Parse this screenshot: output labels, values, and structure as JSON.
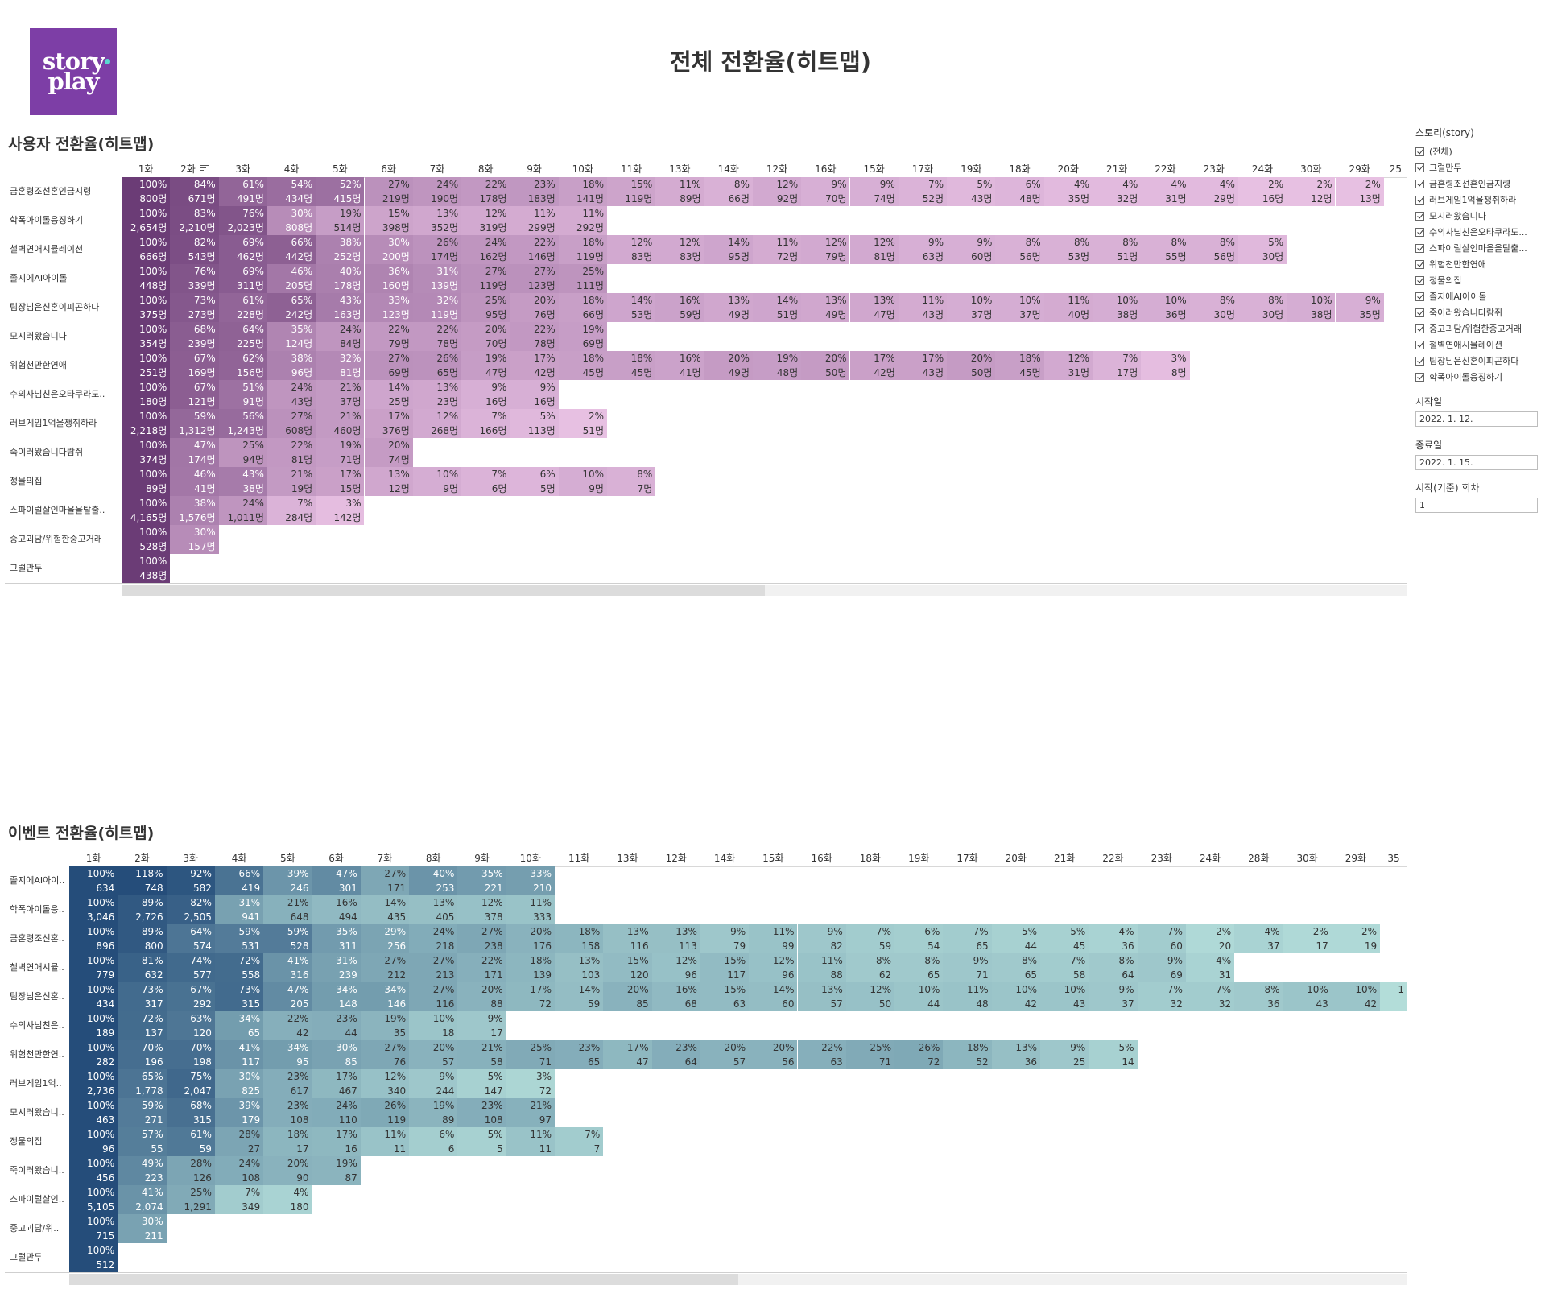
{
  "logo": {
    "line1": "story",
    "line2": "play"
  },
  "page_title": "전체 전환율(히트맵)",
  "filters": {
    "story_title": "스토리(story)",
    "options": [
      "(전체)",
      "그럴만두",
      "금혼령조선혼인금지령",
      "러브게임1억을쟁취하라",
      "모시러왔습니다",
      "수의사님친은오타쿠라도...",
      "스파이럴살인마을을탈출...",
      "위험천만한연애",
      "정물의집",
      "졸지에AI아이돌",
      "죽이러왔습니다람쥐",
      "중고괴담/위험한중고거래",
      "철벽연애시뮬레이션",
      "팀장님은신혼이피곤하다",
      "학폭아이돌응징하기"
    ],
    "start_date_label": "시작일",
    "start_date": "2022. 1. 12.",
    "end_date_label": "종료일",
    "end_date": "2022. 1. 15.",
    "episode_label": "시작(기준) 회차",
    "episode": "1"
  },
  "user_heatmap": {
    "title": "사용자 전환율(히트맵)",
    "columns": [
      "1화",
      "2화",
      "3화",
      "4화",
      "5화",
      "6화",
      "7화",
      "8화",
      "9화",
      "10화",
      "11화",
      "13화",
      "14화",
      "12화",
      "16화",
      "15화",
      "17화",
      "19화",
      "18화",
      "20화",
      "21화",
      "22화",
      "23화",
      "24화",
      "30화",
      "29화",
      "25"
    ],
    "rows": [
      {
        "label": "금혼령조선혼인금지령",
        "pct": [
          "100%",
          "84%",
          "61%",
          "54%",
          "52%",
          "27%",
          "24%",
          "22%",
          "23%",
          "18%",
          "15%",
          "11%",
          "8%",
          "12%",
          "9%",
          "9%",
          "7%",
          "5%",
          "6%",
          "4%",
          "4%",
          "4%",
          "4%",
          "2%",
          "2%",
          "2%"
        ],
        "cnt": [
          "800명",
          "671명",
          "491명",
          "434명",
          "415명",
          "219명",
          "190명",
          "178명",
          "183명",
          "141명",
          "119명",
          "89명",
          "66명",
          "92명",
          "70명",
          "74명",
          "52명",
          "43명",
          "48명",
          "35명",
          "32명",
          "31명",
          "29명",
          "16명",
          "12명",
          "13명"
        ]
      },
      {
        "label": "학폭아이돌응징하기",
        "pct": [
          "100%",
          "83%",
          "76%",
          "30%",
          "19%",
          "15%",
          "13%",
          "12%",
          "11%",
          "11%"
        ],
        "cnt": [
          "2,654명",
          "2,210명",
          "2,023명",
          "808명",
          "514명",
          "398명",
          "352명",
          "319명",
          "299명",
          "292명"
        ]
      },
      {
        "label": "철벽연애시뮬레이션",
        "pct": [
          "100%",
          "82%",
          "69%",
          "66%",
          "38%",
          "30%",
          "26%",
          "24%",
          "22%",
          "18%",
          "12%",
          "12%",
          "14%",
          "11%",
          "12%",
          "12%",
          "9%",
          "9%",
          "8%",
          "8%",
          "8%",
          "8%",
          "8%",
          "5%"
        ],
        "cnt": [
          "666명",
          "543명",
          "462명",
          "442명",
          "252명",
          "200명",
          "174명",
          "162명",
          "146명",
          "119명",
          "83명",
          "83명",
          "95명",
          "72명",
          "79명",
          "81명",
          "63명",
          "60명",
          "56명",
          "53명",
          "51명",
          "55명",
          "56명",
          "30명"
        ]
      },
      {
        "label": "졸지에AI아이돌",
        "pct": [
          "100%",
          "76%",
          "69%",
          "46%",
          "40%",
          "36%",
          "31%",
          "27%",
          "27%",
          "25%"
        ],
        "cnt": [
          "448명",
          "339명",
          "311명",
          "205명",
          "178명",
          "160명",
          "139명",
          "119명",
          "123명",
          "111명"
        ]
      },
      {
        "label": "팀장님은신혼이피곤하다",
        "pct": [
          "100%",
          "73%",
          "61%",
          "65%",
          "43%",
          "33%",
          "32%",
          "25%",
          "20%",
          "18%",
          "14%",
          "16%",
          "13%",
          "14%",
          "13%",
          "13%",
          "11%",
          "10%",
          "10%",
          "11%",
          "10%",
          "10%",
          "8%",
          "8%",
          "10%",
          "9%"
        ],
        "cnt": [
          "375명",
          "273명",
          "228명",
          "242명",
          "163명",
          "123명",
          "119명",
          "95명",
          "76명",
          "66명",
          "53명",
          "59명",
          "49명",
          "51명",
          "49명",
          "47명",
          "43명",
          "37명",
          "37명",
          "40명",
          "38명",
          "36명",
          "30명",
          "30명",
          "38명",
          "35명"
        ]
      },
      {
        "label": "모시러왔습니다",
        "pct": [
          "100%",
          "68%",
          "64%",
          "35%",
          "24%",
          "22%",
          "22%",
          "20%",
          "22%",
          "19%"
        ],
        "cnt": [
          "354명",
          "239명",
          "225명",
          "124명",
          "84명",
          "79명",
          "78명",
          "70명",
          "78명",
          "69명"
        ]
      },
      {
        "label": "위험천만한연애",
        "pct": [
          "100%",
          "67%",
          "62%",
          "38%",
          "32%",
          "27%",
          "26%",
          "19%",
          "17%",
          "18%",
          "18%",
          "16%",
          "20%",
          "19%",
          "20%",
          "17%",
          "17%",
          "20%",
          "18%",
          "12%",
          "7%",
          "3%"
        ],
        "cnt": [
          "251명",
          "169명",
          "156명",
          "96명",
          "81명",
          "69명",
          "65명",
          "47명",
          "42명",
          "45명",
          "45명",
          "41명",
          "49명",
          "48명",
          "50명",
          "42명",
          "43명",
          "50명",
          "45명",
          "31명",
          "17명",
          "8명"
        ]
      },
      {
        "label": "수의사님친은오타쿠라도..",
        "pct": [
          "100%",
          "67%",
          "51%",
          "24%",
          "21%",
          "14%",
          "13%",
          "9%",
          "9%"
        ],
        "cnt": [
          "180명",
          "121명",
          "91명",
          "43명",
          "37명",
          "25명",
          "23명",
          "16명",
          "16명"
        ]
      },
      {
        "label": "러브게임1억을쟁취하라",
        "pct": [
          "100%",
          "59%",
          "56%",
          "27%",
          "21%",
          "17%",
          "12%",
          "7%",
          "5%",
          "2%"
        ],
        "cnt": [
          "2,218명",
          "1,312명",
          "1,243명",
          "608명",
          "460명",
          "376명",
          "268명",
          "166명",
          "113명",
          "51명"
        ]
      },
      {
        "label": "죽이러왔습니다람쥐",
        "pct": [
          "100%",
          "47%",
          "25%",
          "22%",
          "19%",
          "20%"
        ],
        "cnt": [
          "374명",
          "174명",
          "94명",
          "81명",
          "71명",
          "74명"
        ]
      },
      {
        "label": "정물의집",
        "pct": [
          "100%",
          "46%",
          "43%",
          "21%",
          "17%",
          "13%",
          "10%",
          "7%",
          "6%",
          "10%",
          "8%"
        ],
        "cnt": [
          "89명",
          "41명",
          "38명",
          "19명",
          "15명",
          "12명",
          "9명",
          "6명",
          "5명",
          "9명",
          "7명"
        ]
      },
      {
        "label": "스파이럴살인마을을탈출..",
        "pct": [
          "100%",
          "38%",
          "24%",
          "7%",
          "3%"
        ],
        "cnt": [
          "4,165명",
          "1,576명",
          "1,011명",
          "284명",
          "142명"
        ]
      },
      {
        "label": "중고괴담/위험한중고거래",
        "pct": [
          "100%",
          "30%"
        ],
        "cnt": [
          "528명",
          "157명"
        ]
      },
      {
        "label": "그럴만두",
        "pct": [
          "100%"
        ],
        "cnt": [
          "438명"
        ]
      }
    ]
  },
  "event_heatmap": {
    "title": "이벤트 전환율(히트맵)",
    "columns": [
      "1화",
      "2화",
      "3화",
      "4화",
      "5화",
      "6화",
      "7화",
      "8화",
      "9화",
      "10화",
      "11화",
      "13화",
      "12화",
      "14화",
      "15화",
      "16화",
      "18화",
      "19화",
      "17화",
      "20화",
      "21화",
      "22화",
      "23화",
      "24화",
      "28화",
      "30화",
      "29화",
      "35"
    ],
    "rows": [
      {
        "label": "졸지에AI아이..",
        "pct": [
          "100%",
          "118%",
          "92%",
          "66%",
          "39%",
          "47%",
          "27%",
          "40%",
          "35%",
          "33%"
        ],
        "cnt": [
          "634",
          "748",
          "582",
          "419",
          "246",
          "301",
          "171",
          "253",
          "221",
          "210"
        ]
      },
      {
        "label": "학폭아이돌응..",
        "pct": [
          "100%",
          "89%",
          "82%",
          "31%",
          "21%",
          "16%",
          "14%",
          "13%",
          "12%",
          "11%"
        ],
        "cnt": [
          "3,046",
          "2,726",
          "2,505",
          "941",
          "648",
          "494",
          "435",
          "405",
          "378",
          "333"
        ]
      },
      {
        "label": "금혼령조선혼..",
        "pct": [
          "100%",
          "89%",
          "64%",
          "59%",
          "59%",
          "35%",
          "29%",
          "24%",
          "27%",
          "20%",
          "18%",
          "13%",
          "13%",
          "9%",
          "11%",
          "9%",
          "7%",
          "6%",
          "7%",
          "5%",
          "5%",
          "4%",
          "7%",
          "2%",
          "4%",
          "2%",
          "2%"
        ],
        "cnt": [
          "896",
          "800",
          "574",
          "531",
          "528",
          "311",
          "256",
          "218",
          "238",
          "176",
          "158",
          "116",
          "113",
          "79",
          "99",
          "82",
          "59",
          "54",
          "65",
          "44",
          "45",
          "36",
          "60",
          "20",
          "37",
          "17",
          "19"
        ]
      },
      {
        "label": "철벽연애시뮬..",
        "pct": [
          "100%",
          "81%",
          "74%",
          "72%",
          "41%",
          "31%",
          "27%",
          "27%",
          "22%",
          "18%",
          "13%",
          "15%",
          "12%",
          "15%",
          "12%",
          "11%",
          "8%",
          "8%",
          "9%",
          "8%",
          "7%",
          "8%",
          "9%",
          "4%"
        ],
        "cnt": [
          "779",
          "632",
          "577",
          "558",
          "316",
          "239",
          "212",
          "213",
          "171",
          "139",
          "103",
          "120",
          "96",
          "117",
          "96",
          "88",
          "62",
          "65",
          "71",
          "65",
          "58",
          "64",
          "69",
          "31"
        ]
      },
      {
        "label": "팀장님은신혼..",
        "pct": [
          "100%",
          "73%",
          "67%",
          "73%",
          "47%",
          "34%",
          "34%",
          "27%",
          "20%",
          "17%",
          "14%",
          "20%",
          "16%",
          "15%",
          "14%",
          "13%",
          "12%",
          "10%",
          "11%",
          "10%",
          "10%",
          "9%",
          "7%",
          "7%",
          "8%",
          "10%",
          "10%",
          "1"
        ],
        "cnt": [
          "434",
          "317",
          "292",
          "315",
          "205",
          "148",
          "146",
          "116",
          "88",
          "72",
          "59",
          "85",
          "68",
          "63",
          "60",
          "57",
          "50",
          "44",
          "48",
          "42",
          "43",
          "37",
          "32",
          "32",
          "36",
          "43",
          "42",
          ""
        ]
      },
      {
        "label": "수의사님친은..",
        "pct": [
          "100%",
          "72%",
          "63%",
          "34%",
          "22%",
          "23%",
          "19%",
          "10%",
          "9%"
        ],
        "cnt": [
          "189",
          "137",
          "120",
          "65",
          "42",
          "44",
          "35",
          "18",
          "17"
        ]
      },
      {
        "label": "위험천만한연..",
        "pct": [
          "100%",
          "70%",
          "70%",
          "41%",
          "34%",
          "30%",
          "27%",
          "20%",
          "21%",
          "25%",
          "23%",
          "17%",
          "23%",
          "20%",
          "20%",
          "22%",
          "25%",
          "26%",
          "18%",
          "13%",
          "9%",
          "5%"
        ],
        "cnt": [
          "282",
          "196",
          "198",
          "117",
          "95",
          "85",
          "76",
          "57",
          "58",
          "71",
          "65",
          "47",
          "64",
          "57",
          "56",
          "63",
          "71",
          "72",
          "52",
          "36",
          "25",
          "14"
        ]
      },
      {
        "label": "러브게임1억..",
        "pct": [
          "100%",
          "65%",
          "75%",
          "30%",
          "23%",
          "17%",
          "12%",
          "9%",
          "5%",
          "3%"
        ],
        "cnt": [
          "2,736",
          "1,778",
          "2,047",
          "825",
          "617",
          "467",
          "340",
          "244",
          "147",
          "72"
        ]
      },
      {
        "label": "모시러왔습니..",
        "pct": [
          "100%",
          "59%",
          "68%",
          "39%",
          "23%",
          "24%",
          "26%",
          "19%",
          "23%",
          "21%"
        ],
        "cnt": [
          "463",
          "271",
          "315",
          "179",
          "108",
          "110",
          "119",
          "89",
          "108",
          "97"
        ]
      },
      {
        "label": "정물의집",
        "pct": [
          "100%",
          "57%",
          "61%",
          "28%",
          "18%",
          "17%",
          "11%",
          "6%",
          "5%",
          "11%",
          "7%"
        ],
        "cnt": [
          "96",
          "55",
          "59",
          "27",
          "17",
          "16",
          "11",
          "6",
          "5",
          "11",
          "7"
        ]
      },
      {
        "label": "죽이러왔습니..",
        "pct": [
          "100%",
          "49%",
          "28%",
          "24%",
          "20%",
          "19%"
        ],
        "cnt": [
          "456",
          "223",
          "126",
          "108",
          "90",
          "87"
        ]
      },
      {
        "label": "스파이럴살인..",
        "pct": [
          "100%",
          "41%",
          "25%",
          "7%",
          "4%"
        ],
        "cnt": [
          "5,105",
          "2,074",
          "1,291",
          "349",
          "180"
        ]
      },
      {
        "label": "중고괴담/위..",
        "pct": [
          "100%",
          "30%"
        ],
        "cnt": [
          "715",
          "211"
        ]
      },
      {
        "label": "그럴만두",
        "pct": [
          "100%"
        ],
        "cnt": [
          "512"
        ]
      }
    ]
  },
  "colors": {
    "user_low": "#f0c9ea",
    "user_high": "#6b3c76",
    "event_low": "#b9e3dd",
    "event_high": "#254d7a"
  }
}
